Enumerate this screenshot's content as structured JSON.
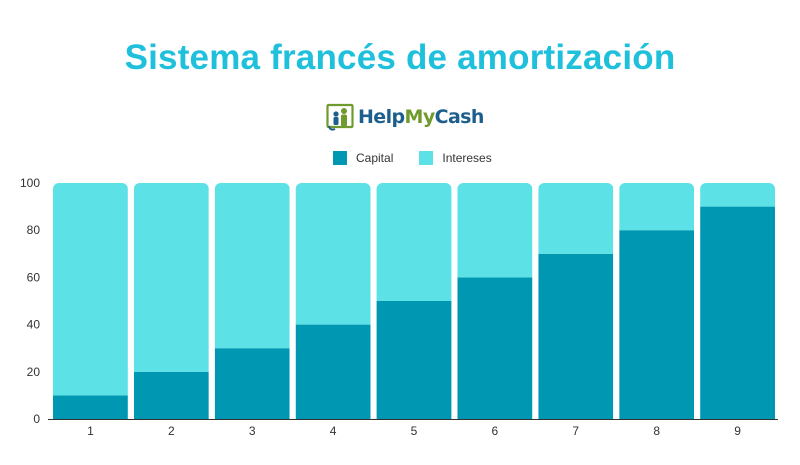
{
  "title": "Sistema francés de amortización",
  "logo": {
    "part1": "Help",
    "part2": "My",
    "part3": "Cash",
    "icon": "family-frame-icon"
  },
  "colors": {
    "capital": "#0097b2",
    "intereses": "#5ce1e6",
    "title": "#1fc0dc"
  },
  "chart_data": {
    "type": "bar",
    "stacked": true,
    "categories": [
      "1",
      "2",
      "3",
      "4",
      "5",
      "6",
      "7",
      "8",
      "9"
    ],
    "series": [
      {
        "name": "Capital",
        "values": [
          10,
          20,
          30,
          40,
          50,
          60,
          70,
          80,
          90
        ]
      },
      {
        "name": "Intereses",
        "values": [
          90,
          80,
          70,
          60,
          50,
          40,
          30,
          20,
          10
        ]
      }
    ],
    "ylim": [
      0,
      100
    ],
    "yticks": [
      "0",
      "20",
      "40",
      "60",
      "80",
      "100"
    ],
    "legend_position": "top-center",
    "grid": false
  }
}
